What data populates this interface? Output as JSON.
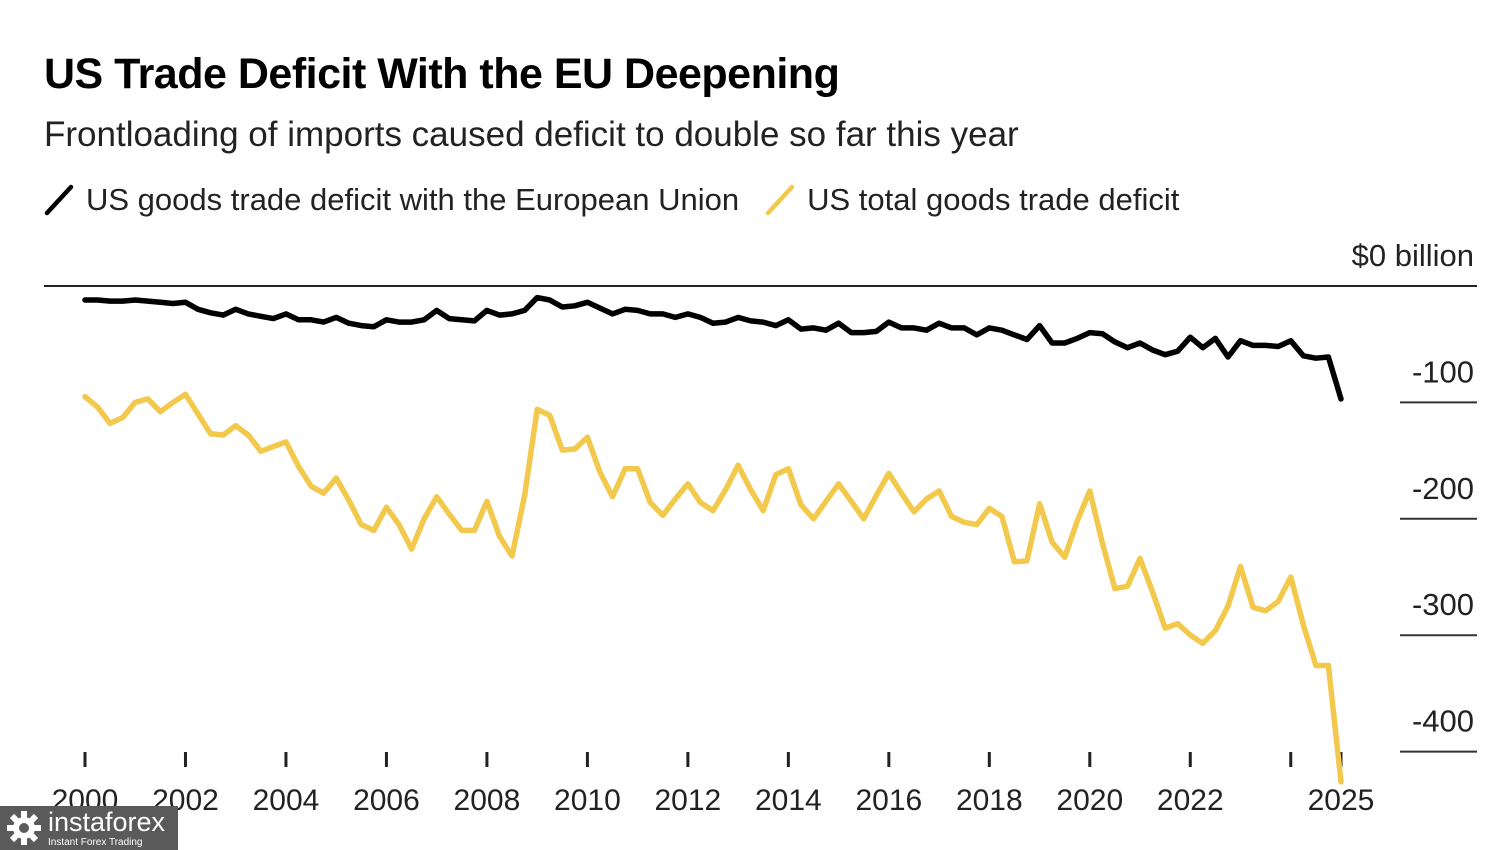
{
  "title": "US Trade Deficit With the EU Deepening",
  "subtitle": "Frontloading of imports caused deficit to double so far this year",
  "legend": [
    {
      "label": "US goods trade deficit with the European Union",
      "color": "#000000"
    },
    {
      "label": "US total goods trade deficit",
      "color": "#f2c94c"
    }
  ],
  "watermark": {
    "name": "instaforex",
    "tagline": "Instant Forex Trading",
    "icon": "gear-logo-icon"
  },
  "chart_data": {
    "type": "line",
    "ylim": [
      -430,
      0
    ],
    "xlim": [
      2000,
      2025.25
    ],
    "y_ticks": [
      {
        "value": 0,
        "label": "$0 billion"
      },
      {
        "value": -100,
        "label": "-100"
      },
      {
        "value": -200,
        "label": "-200"
      },
      {
        "value": -300,
        "label": "-300"
      },
      {
        "value": -400,
        "label": "-400"
      }
    ],
    "x_ticks": [
      {
        "value": 2000,
        "label": "2000"
      },
      {
        "value": 2002,
        "label": "2002"
      },
      {
        "value": 2004,
        "label": "2004"
      },
      {
        "value": 2006,
        "label": "2006"
      },
      {
        "value": 2008,
        "label": "2008"
      },
      {
        "value": 2010,
        "label": "2010"
      },
      {
        "value": 2012,
        "label": "2012"
      },
      {
        "value": 2014,
        "label": "2014"
      },
      {
        "value": 2016,
        "label": "2016"
      },
      {
        "value": 2018,
        "label": "2018"
      },
      {
        "value": 2020,
        "label": "2020"
      },
      {
        "value": 2022,
        "label": "2022"
      },
      {
        "value": 2024,
        "label": ""
      },
      {
        "value": 2025,
        "label": "2025"
      }
    ],
    "series": [
      {
        "name": "US goods trade deficit with the European Union",
        "color": "#000000",
        "points": [
          [
            2000.0,
            -12
          ],
          [
            2000.25,
            -12
          ],
          [
            2000.5,
            -13
          ],
          [
            2000.75,
            -13
          ],
          [
            2001.0,
            -12
          ],
          [
            2001.25,
            -13
          ],
          [
            2001.5,
            -14
          ],
          [
            2001.75,
            -15
          ],
          [
            2002.0,
            -14
          ],
          [
            2002.25,
            -20
          ],
          [
            2002.5,
            -23
          ],
          [
            2002.75,
            -25
          ],
          [
            2003.0,
            -20
          ],
          [
            2003.25,
            -24
          ],
          [
            2003.5,
            -26
          ],
          [
            2003.75,
            -28
          ],
          [
            2004.0,
            -24
          ],
          [
            2004.25,
            -29
          ],
          [
            2004.5,
            -29
          ],
          [
            2004.75,
            -31
          ],
          [
            2005.0,
            -27
          ],
          [
            2005.25,
            -32
          ],
          [
            2005.5,
            -34
          ],
          [
            2005.75,
            -35
          ],
          [
            2006.0,
            -29
          ],
          [
            2006.25,
            -31
          ],
          [
            2006.5,
            -31
          ],
          [
            2006.75,
            -29
          ],
          [
            2007.0,
            -21
          ],
          [
            2007.25,
            -28
          ],
          [
            2007.5,
            -29
          ],
          [
            2007.75,
            -30
          ],
          [
            2008.0,
            -21
          ],
          [
            2008.25,
            -25
          ],
          [
            2008.5,
            -24
          ],
          [
            2008.75,
            -21
          ],
          [
            2009.0,
            -10
          ],
          [
            2009.25,
            -12
          ],
          [
            2009.5,
            -18
          ],
          [
            2009.75,
            -17
          ],
          [
            2010.0,
            -14
          ],
          [
            2010.25,
            -19
          ],
          [
            2010.5,
            -24
          ],
          [
            2010.75,
            -20
          ],
          [
            2011.0,
            -21
          ],
          [
            2011.25,
            -24
          ],
          [
            2011.5,
            -24
          ],
          [
            2011.75,
            -27
          ],
          [
            2012.0,
            -24
          ],
          [
            2012.25,
            -27
          ],
          [
            2012.5,
            -32
          ],
          [
            2012.75,
            -31
          ],
          [
            2013.0,
            -27
          ],
          [
            2013.25,
            -30
          ],
          [
            2013.5,
            -31
          ],
          [
            2013.75,
            -34
          ],
          [
            2014.0,
            -29
          ],
          [
            2014.25,
            -37
          ],
          [
            2014.5,
            -36
          ],
          [
            2014.75,
            -38
          ],
          [
            2015.0,
            -32
          ],
          [
            2015.25,
            -40
          ],
          [
            2015.5,
            -40
          ],
          [
            2015.75,
            -39
          ],
          [
            2016.0,
            -31
          ],
          [
            2016.25,
            -36
          ],
          [
            2016.5,
            -36
          ],
          [
            2016.75,
            -38
          ],
          [
            2017.0,
            -32
          ],
          [
            2017.25,
            -36
          ],
          [
            2017.5,
            -36
          ],
          [
            2017.75,
            -42
          ],
          [
            2018.0,
            -36
          ],
          [
            2018.25,
            -38
          ],
          [
            2018.5,
            -42
          ],
          [
            2018.75,
            -46
          ],
          [
            2019.0,
            -34
          ],
          [
            2019.25,
            -49
          ],
          [
            2019.5,
            -49
          ],
          [
            2019.75,
            -45
          ],
          [
            2020.0,
            -40
          ],
          [
            2020.25,
            -41
          ],
          [
            2020.5,
            -48
          ],
          [
            2020.75,
            -53
          ],
          [
            2021.0,
            -49
          ],
          [
            2021.25,
            -55
          ],
          [
            2021.5,
            -59
          ],
          [
            2021.75,
            -56
          ],
          [
            2022.0,
            -44
          ],
          [
            2022.25,
            -53
          ],
          [
            2022.5,
            -45
          ],
          [
            2022.75,
            -61
          ],
          [
            2023.0,
            -47
          ],
          [
            2023.25,
            -51
          ],
          [
            2023.5,
            -51
          ],
          [
            2023.75,
            -52
          ],
          [
            2024.0,
            -47
          ],
          [
            2024.25,
            -60
          ],
          [
            2024.5,
            -62
          ],
          [
            2024.75,
            -61
          ],
          [
            2025.0,
            -97
          ]
        ]
      },
      {
        "name": "US total goods trade deficit",
        "color": "#f2c94c",
        "points": [
          [
            2000.0,
            -95
          ],
          [
            2000.25,
            -104
          ],
          [
            2000.5,
            -118
          ],
          [
            2000.75,
            -113
          ],
          [
            2001.0,
            -100
          ],
          [
            2001.25,
            -97
          ],
          [
            2001.5,
            -108
          ],
          [
            2001.75,
            -100
          ],
          [
            2002.0,
            -93
          ],
          [
            2002.25,
            -110
          ],
          [
            2002.5,
            -127
          ],
          [
            2002.75,
            -128
          ],
          [
            2003.0,
            -120
          ],
          [
            2003.25,
            -128
          ],
          [
            2003.5,
            -142
          ],
          [
            2003.75,
            -138
          ],
          [
            2004.0,
            -134
          ],
          [
            2004.25,
            -155
          ],
          [
            2004.5,
            -172
          ],
          [
            2004.75,
            -178
          ],
          [
            2005.0,
            -165
          ],
          [
            2005.25,
            -184
          ],
          [
            2005.5,
            -205
          ],
          [
            2005.75,
            -210
          ],
          [
            2006.0,
            -190
          ],
          [
            2006.25,
            -205
          ],
          [
            2006.5,
            -226
          ],
          [
            2006.75,
            -200
          ],
          [
            2007.0,
            -181
          ],
          [
            2007.25,
            -196
          ],
          [
            2007.5,
            -210
          ],
          [
            2007.75,
            -210
          ],
          [
            2008.0,
            -185
          ],
          [
            2008.25,
            -215
          ],
          [
            2008.5,
            -232
          ],
          [
            2008.75,
            -180
          ],
          [
            2009.0,
            -106
          ],
          [
            2009.25,
            -111
          ],
          [
            2009.5,
            -141
          ],
          [
            2009.75,
            -140
          ],
          [
            2010.0,
            -130
          ],
          [
            2010.25,
            -160
          ],
          [
            2010.5,
            -181
          ],
          [
            2010.75,
            -157
          ],
          [
            2011.0,
            -157
          ],
          [
            2011.25,
            -186
          ],
          [
            2011.5,
            -197
          ],
          [
            2011.75,
            -183
          ],
          [
            2012.0,
            -170
          ],
          [
            2012.25,
            -186
          ],
          [
            2012.5,
            -193
          ],
          [
            2012.75,
            -175
          ],
          [
            2013.0,
            -154
          ],
          [
            2013.25,
            -175
          ],
          [
            2013.5,
            -193
          ],
          [
            2013.75,
            -162
          ],
          [
            2014.0,
            -157
          ],
          [
            2014.25,
            -188
          ],
          [
            2014.5,
            -200
          ],
          [
            2014.75,
            -185
          ],
          [
            2015.0,
            -170
          ],
          [
            2015.25,
            -185
          ],
          [
            2015.5,
            -200
          ],
          [
            2015.75,
            -180
          ],
          [
            2016.0,
            -161
          ],
          [
            2016.25,
            -178
          ],
          [
            2016.5,
            -194
          ],
          [
            2016.75,
            -183
          ],
          [
            2017.0,
            -176
          ],
          [
            2017.25,
            -198
          ],
          [
            2017.5,
            -203
          ],
          [
            2017.75,
            -205
          ],
          [
            2018.0,
            -191
          ],
          [
            2018.25,
            -198
          ],
          [
            2018.5,
            -237
          ],
          [
            2018.75,
            -236
          ],
          [
            2019.0,
            -187
          ],
          [
            2019.25,
            -220
          ],
          [
            2019.5,
            -233
          ],
          [
            2019.75,
            -202
          ],
          [
            2020.0,
            -176
          ],
          [
            2020.25,
            -221
          ],
          [
            2020.5,
            -260
          ],
          [
            2020.75,
            -258
          ],
          [
            2021.0,
            -234
          ],
          [
            2021.25,
            -263
          ],
          [
            2021.5,
            -294
          ],
          [
            2021.75,
            -290
          ],
          [
            2022.0,
            -300
          ],
          [
            2022.25,
            -307
          ],
          [
            2022.5,
            -296
          ],
          [
            2022.75,
            -275
          ],
          [
            2023.0,
            -241
          ],
          [
            2023.25,
            -276
          ],
          [
            2023.5,
            -279
          ],
          [
            2023.75,
            -271
          ],
          [
            2024.0,
            -250
          ],
          [
            2024.25,
            -291
          ],
          [
            2024.5,
            -326
          ],
          [
            2024.75,
            -326
          ],
          [
            2025.0,
            -426
          ]
        ]
      }
    ]
  }
}
